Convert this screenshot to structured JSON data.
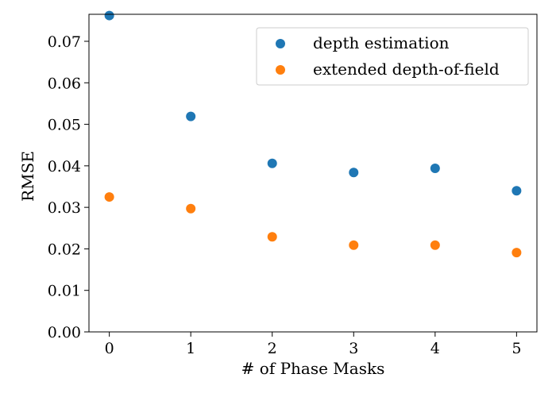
{
  "chart_data": {
    "type": "scatter",
    "xlabel": "# of Phase Masks",
    "ylabel": "RMSE",
    "xlim": [
      -0.25,
      5.25
    ],
    "ylim": [
      0,
      0.0765
    ],
    "xticks": [
      0,
      1,
      2,
      3,
      4,
      5
    ],
    "xtick_labels": [
      "0",
      "1",
      "2",
      "3",
      "4",
      "5"
    ],
    "yticks": [
      0,
      0.01,
      0.02,
      0.03,
      0.04,
      0.05,
      0.06,
      0.07
    ],
    "ytick_labels": [
      "0.00",
      "0.01",
      "0.02",
      "0.03",
      "0.04",
      "0.05",
      "0.06",
      "0.07"
    ],
    "grid": false,
    "legend_position": "top-right",
    "series": [
      {
        "name": "depth estimation",
        "color": "#1f77b4",
        "x": [
          0,
          1,
          2,
          3,
          4,
          5
        ],
        "y": [
          0.0762,
          0.0519,
          0.0406,
          0.0384,
          0.0394,
          0.034
        ]
      },
      {
        "name": "extended depth-of-field",
        "color": "#ff7f0e",
        "x": [
          0,
          1,
          2,
          3,
          4,
          5
        ],
        "y": [
          0.0325,
          0.0297,
          0.0229,
          0.0209,
          0.0209,
          0.0191
        ]
      }
    ]
  }
}
